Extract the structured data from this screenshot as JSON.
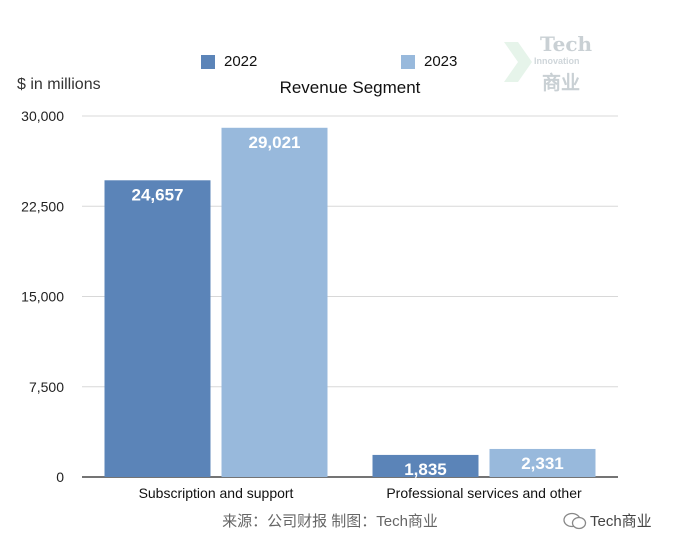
{
  "chart_data": {
    "type": "bar",
    "title": "Revenue Segment",
    "xlabel": "",
    "ylabel": "$ in millions",
    "categories": [
      "Subscription and support",
      "Professional services and other"
    ],
    "series": [
      {
        "name": "2022",
        "color": "#5b84b8",
        "values": [
          24657,
          1835
        ],
        "labels": [
          "24,657",
          "1,835"
        ]
      },
      {
        "name": "2023",
        "color": "#98b9dc",
        "values": [
          29021,
          2331
        ],
        "labels": [
          "29,021",
          "2,331"
        ]
      }
    ],
    "ylim": [
      0,
      30000
    ],
    "yticks": [
      0,
      7500,
      15000,
      22500,
      30000
    ],
    "ytick_labels": [
      "0",
      "7,500",
      "15,000",
      "22,500",
      "30,000"
    ],
    "grid": true,
    "legend": "top"
  },
  "source_text": "来源：公司财报 制图：Tech商业",
  "watermark": {
    "handle": "Tech商业",
    "icon": "wechat-icon"
  },
  "logo": {
    "tech": "Tech",
    "innovation": "Innovation",
    "cn": "商业",
    "icon": "chevron-arrow-icon"
  }
}
